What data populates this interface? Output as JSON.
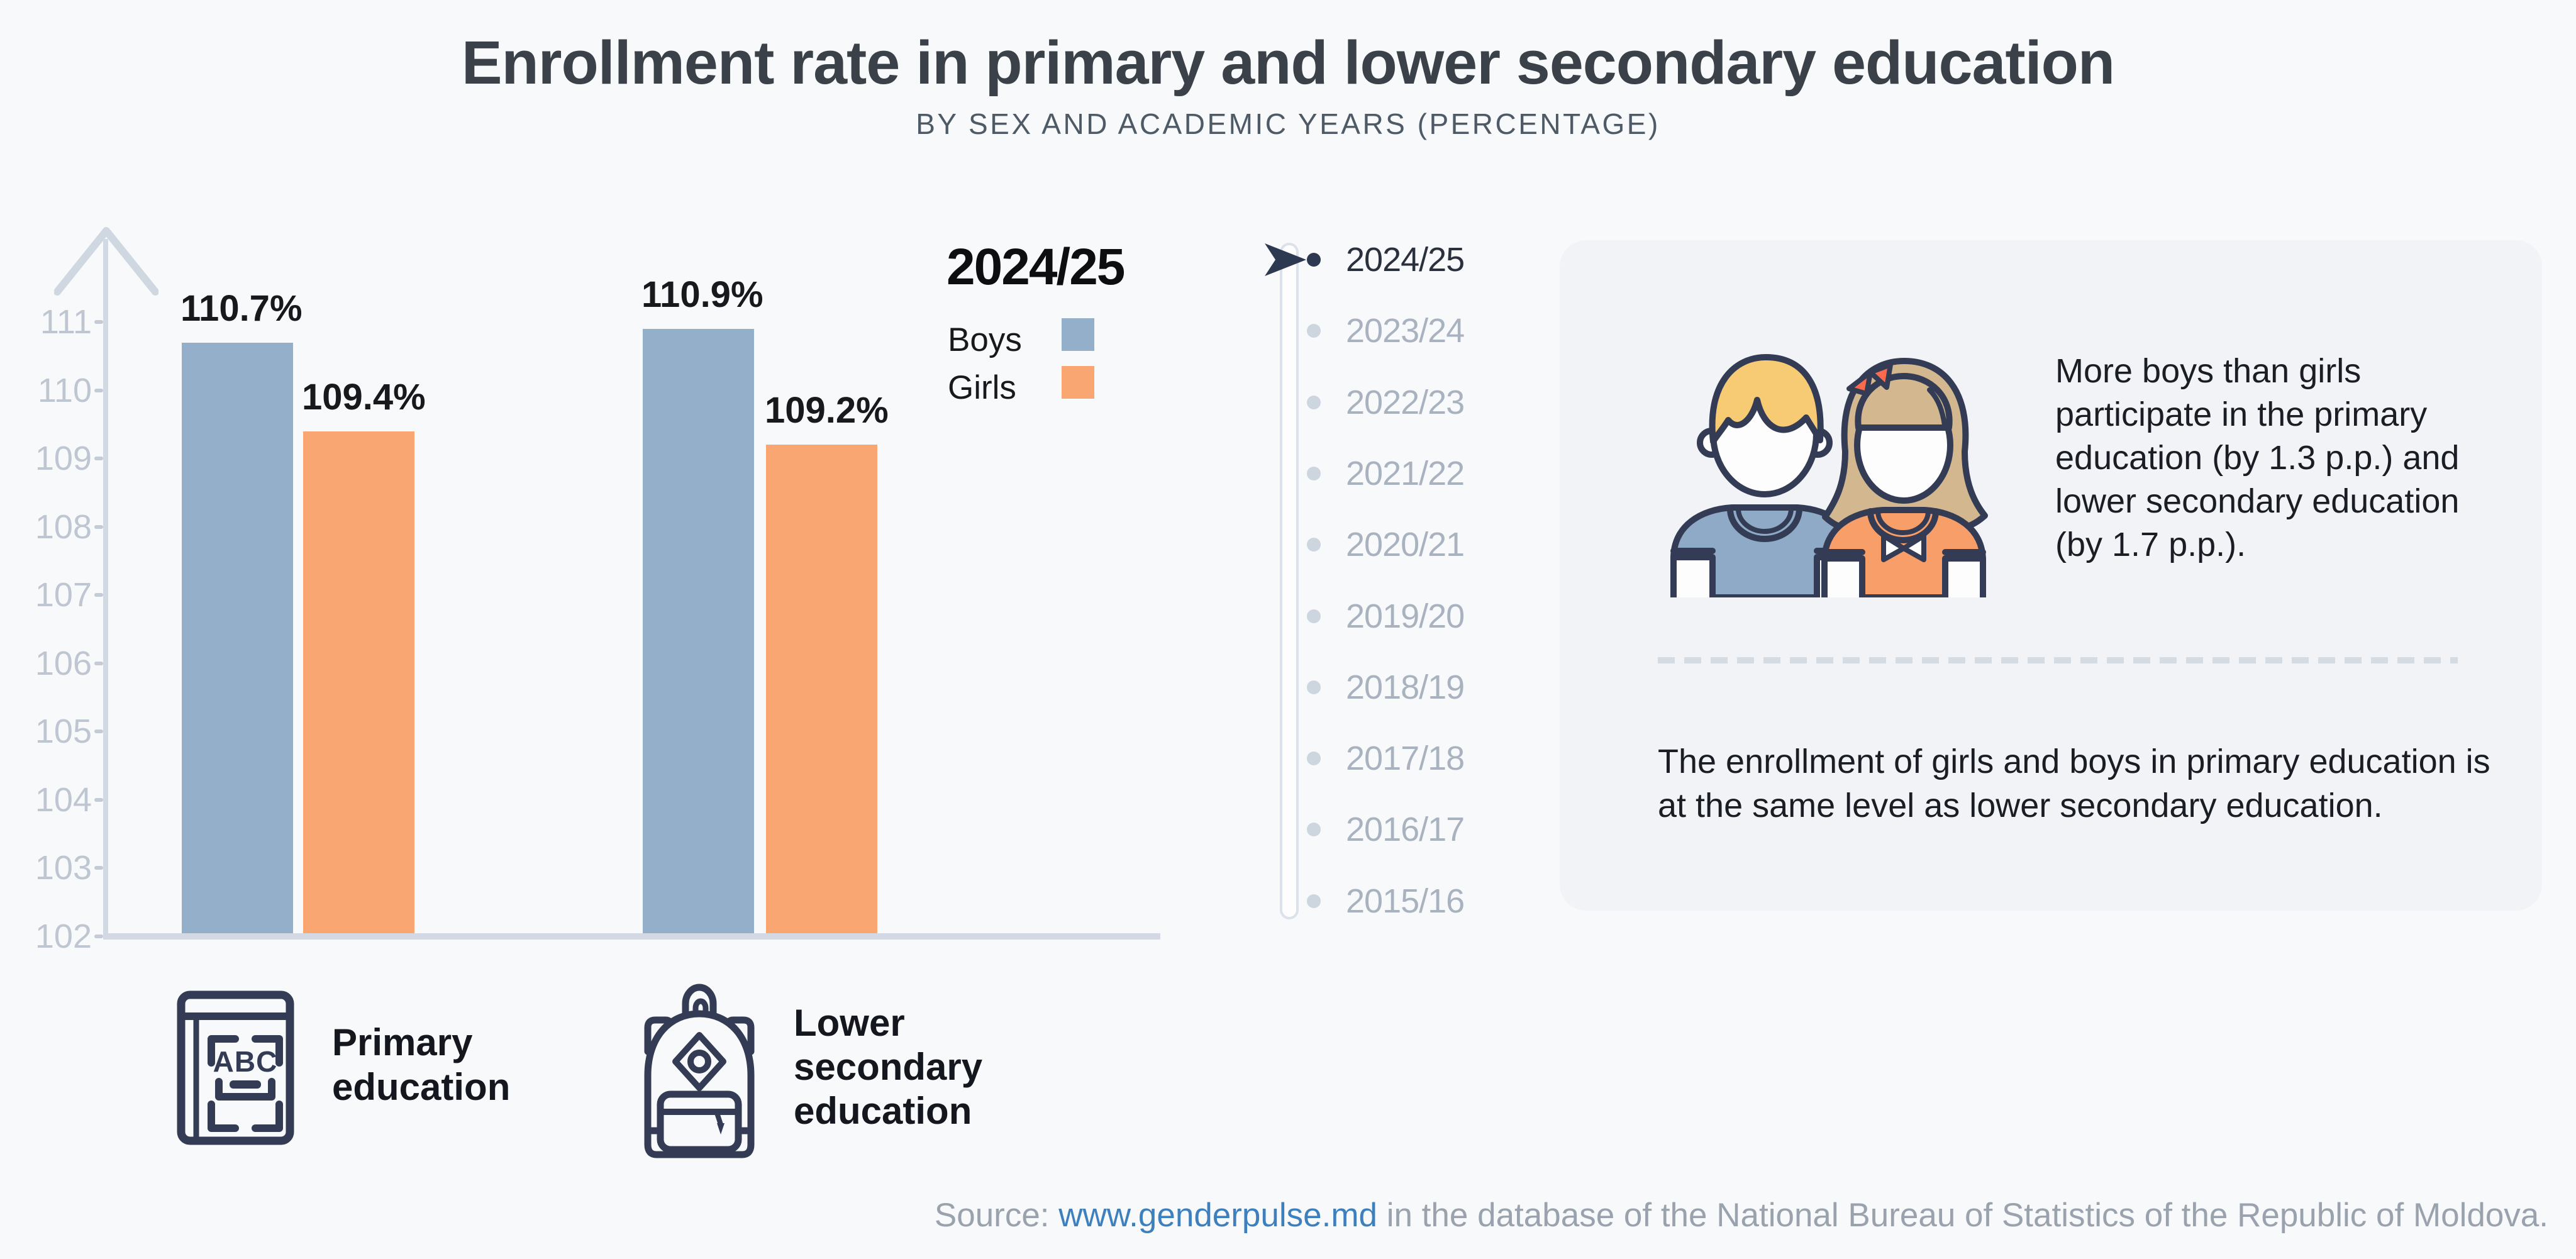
{
  "title": "Enrollment rate in primary and lower secondary education",
  "subtitle": "BY SEX AND ACADEMIC YEARS (PERCENTAGE)",
  "chart_data": {
    "type": "bar",
    "title": "Enrollment rate in primary and lower secondary education",
    "subtitle": "BY SEX AND ACADEMIC YEARS (PERCENTAGE)",
    "academic_year": "2024/25",
    "categories": [
      "Primary education",
      "Lower secondary education"
    ],
    "series": [
      {
        "name": "Boys",
        "color": "#93afc9",
        "values": [
          110.7,
          110.9
        ]
      },
      {
        "name": "Girls",
        "color": "#faa672",
        "values": [
          109.4,
          109.2
        ]
      }
    ],
    "value_label_format": "percent",
    "value_labels": [
      "110.7%",
      "109.4%",
      "110.9%",
      "109.2%"
    ],
    "xlabel": "",
    "ylabel": "",
    "y_ticks": [
      102,
      103,
      104,
      105,
      106,
      107,
      108,
      109,
      110,
      111
    ],
    "ylim": [
      102,
      111.5
    ],
    "grid": false,
    "legend_position": "right-of-bars"
  },
  "legend": {
    "year": "2024/25",
    "items": [
      {
        "label": "Boys",
        "color": "#93afc9"
      },
      {
        "label": "Girls",
        "color": "#faa672"
      }
    ]
  },
  "timeline": {
    "selected": "2024/25",
    "years": [
      "2024/25",
      "2023/24",
      "2022/23",
      "2021/22",
      "2020/21",
      "2019/20",
      "2018/19",
      "2017/18",
      "2016/17",
      "2015/16"
    ]
  },
  "insight_card": {
    "paragraph1": "More boys than girls participate in the primary education (by 1.3 p.p.) and lower secondary education (by 1.7 p.p.).",
    "paragraph2": "The enrollment of girls and boys in primary education is at the same level as lower secondary education."
  },
  "category_labels": [
    {
      "icon": "book-abc-icon",
      "label": "Primary education",
      "book_text": "ABC"
    },
    {
      "icon": "backpack-icon",
      "label": "Lower secondary education"
    }
  ],
  "source": {
    "prefix": "Source: ",
    "link": "www.genderpulse.md",
    "suffix": " in the database of the National Bureau of Statistics of the Republic of Moldova."
  },
  "colors": {
    "background": "#f8f9fb",
    "card_background": "#f1f3f6",
    "axis": "#d2d9e2",
    "tick_text": "#bec6d1",
    "boys": "#93afc9",
    "girls": "#faa672",
    "active_navy": "#2c3950",
    "inactive_gray": "#a9b2bf",
    "dot_inactive": "#cdd5df",
    "icon_navy": "#333c54",
    "boy_hair": "#f7cb74",
    "girl_hair": "#d2b78f",
    "bow_red": "#fb6a4d",
    "source_gray": "#99a2ad",
    "link_blue": "#3e80be"
  }
}
